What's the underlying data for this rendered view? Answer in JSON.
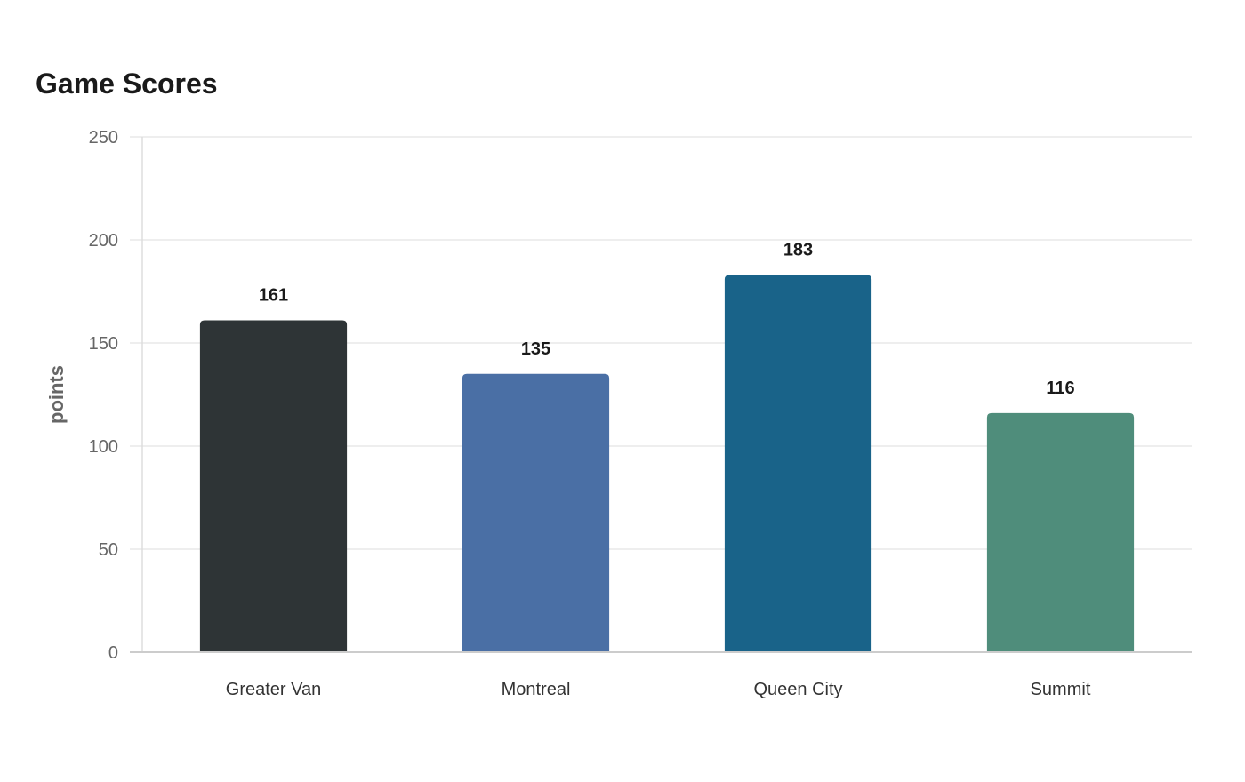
{
  "chart_data": {
    "type": "bar",
    "title": "Game Scores",
    "xlabel": "",
    "ylabel": "points",
    "categories": [
      "Greater Van",
      "Montreal",
      "Queen City",
      "Summit"
    ],
    "values": [
      161,
      135,
      183,
      116
    ],
    "colors": [
      "#2e3436",
      "#4a6fa5",
      "#196389",
      "#4f8d7b"
    ],
    "ylim": [
      0,
      250
    ],
    "yticks": [
      0,
      50,
      100,
      150,
      200,
      250
    ],
    "grid": true,
    "legend": "none"
  }
}
